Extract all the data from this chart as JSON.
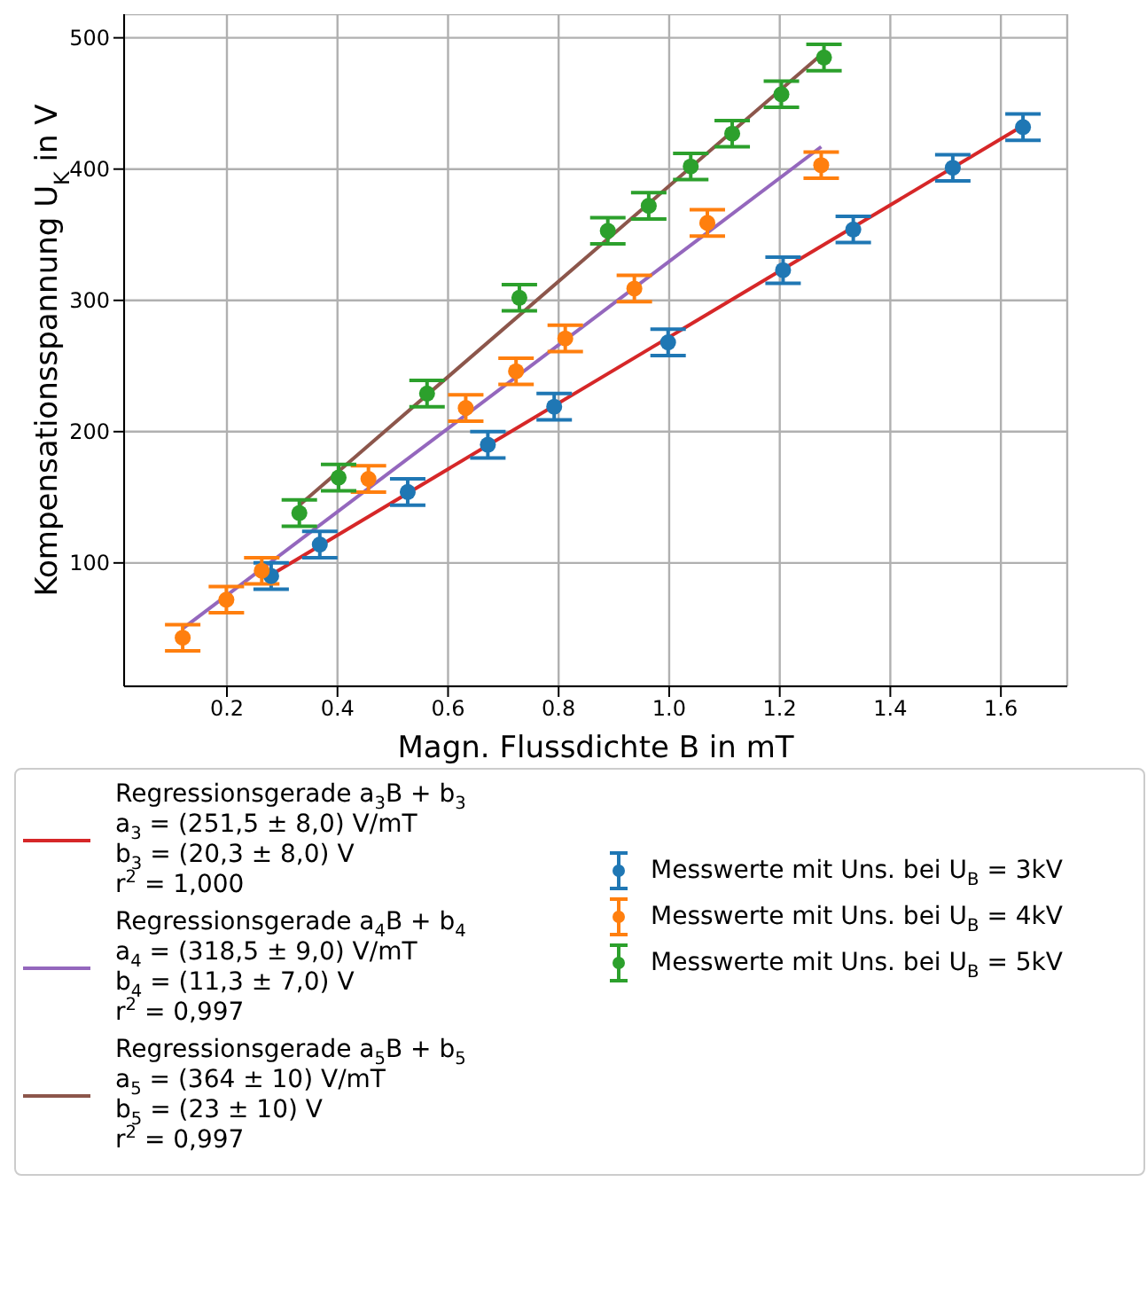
{
  "chart_data": {
    "type": "scatter",
    "xlabel": "Magn. Flussdichte B in mT",
    "ylabel": "Kompensationsspannung U$_{K}$ in V",
    "xlim": [
      0.014,
      1.72
    ],
    "ylim": [
      6,
      518
    ],
    "xticks": [
      0.2,
      0.4,
      0.6,
      0.8,
      {
        "value": 1,
        "label": "1.0"
      },
      1.2,
      1.4,
      1.6
    ],
    "yticks": [
      100,
      200,
      300,
      400,
      500
    ],
    "grid": true,
    "legend": "bottom",
    "marker": "circle",
    "line_style": "solid",
    "series": [
      {
        "type": "line",
        "name": "Regressionsgerade a$_{3}$B + b$_{3}$\na$_{3}$ = (251,5 ± 8,0) V/mT\nb$_{3}$ = (20,3 ± 8,0) V\nr$^{2}$ = 1,000",
        "color": "#d62728",
        "x": [
          0.28,
          1.64
        ],
        "values": [
          91,
          433
        ],
        "marker": "none"
      },
      {
        "type": "line",
        "name": "Regressionsgerade a$_{4}$B + b$_{4}$\na$_{4}$ = (318,5 ± 9,0) V/mT\nb$_{4}$ = (11,3 ± 7,0) V\nr$^{2}$ = 0,997",
        "color": "#9467bd",
        "x": [
          0.12,
          1.275
        ],
        "values": [
          50,
          417
        ],
        "marker": "none"
      },
      {
        "type": "line",
        "name": "Regressionsgerade a$_{5}$B + b$_{5}$\na$_{5}$ = (364 ± 10) V/mT\nb$_{5}$ = (23 ± 10) V\nr$^{2}$ = 0,997",
        "color": "#8c564b",
        "x": [
          0.331,
          1.28
        ],
        "values": [
          144,
          489
        ],
        "marker": "none"
      },
      {
        "name": "Messwerte mit Uns. bei U$_{B}$ = 3kV",
        "color": "#1f77b4",
        "x": [
          0.28,
          0.368,
          0.527,
          0.672,
          0.792,
          0.998,
          1.206,
          1.333,
          1.513,
          1.64
        ],
        "values": [
          90,
          114,
          154,
          190,
          219,
          268,
          323,
          354,
          401,
          432
        ],
        "errors": [
          10,
          10,
          10,
          10,
          10,
          10,
          10,
          10,
          10,
          10
        ]
      },
      {
        "name": "Messwerte mit Uns. bei U$_{B}$ = 4kV",
        "color": "#ff7f0e",
        "x": [
          0.12,
          0.199,
          0.263,
          0.456,
          0.632,
          0.723,
          0.812,
          0.937,
          1.069,
          1.275
        ],
        "values": [
          43,
          72,
          94,
          164,
          218,
          246,
          271,
          309,
          359,
          403
        ],
        "errors": [
          10,
          10,
          10,
          10,
          10,
          10,
          10,
          10,
          10,
          10
        ]
      },
      {
        "name": "Messwerte mit Uns. bei U$_{B}$ = 5kV",
        "color": "#2ca02c",
        "x": [
          0.331,
          0.402,
          0.562,
          0.729,
          0.889,
          0.963,
          1.039,
          1.114,
          1.203,
          1.28
        ],
        "values": [
          138,
          165,
          229,
          302,
          353,
          372,
          402,
          427,
          457,
          485
        ],
        "errors": [
          10,
          10,
          10,
          10,
          10,
          10,
          10,
          10,
          10,
          10
        ]
      }
    ]
  }
}
